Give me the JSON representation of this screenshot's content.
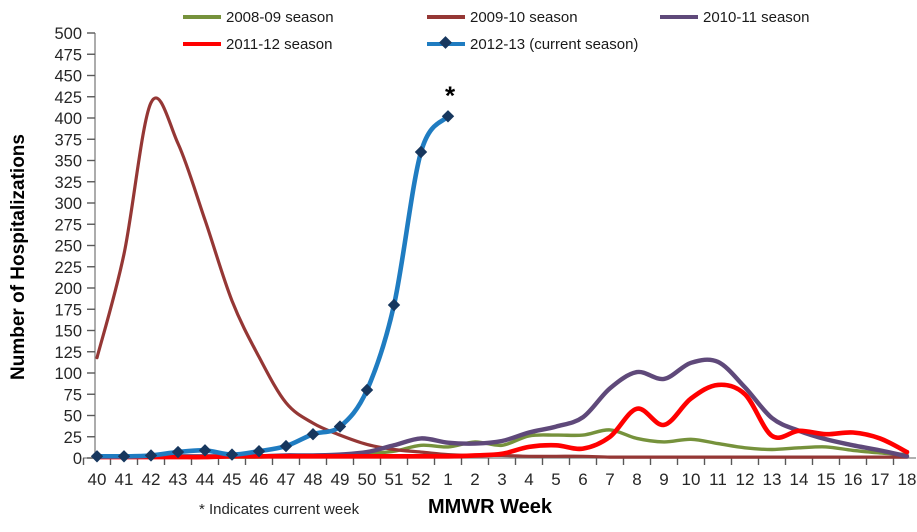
{
  "chart_data": {
    "type": "line",
    "title": "",
    "xlabel": "MMWR Week",
    "ylabel": "Number of Hospitalizations",
    "footnote": "* Indicates current week",
    "x_categories": [
      "40",
      "41",
      "42",
      "43",
      "44",
      "45",
      "46",
      "47",
      "48",
      "49",
      "50",
      "51",
      "52",
      "1",
      "2",
      "3",
      "4",
      "5",
      "6",
      "7",
      "8",
      "9",
      "10",
      "11",
      "12",
      "13",
      "14",
      "15",
      "16",
      "17",
      "18"
    ],
    "ylim": [
      0,
      500
    ],
    "ytick_step": 25,
    "grid": false,
    "legend_position": "top",
    "annotation": {
      "text": "*",
      "series": "2012-13 (current season)",
      "at_category": "1",
      "meaning": "current week"
    },
    "series": [
      {
        "name": "2008-09 season",
        "color": "#76923C",
        "line_width": 3.4,
        "values": [
          1,
          1,
          1,
          1,
          1,
          1,
          1,
          2,
          2,
          3,
          5,
          8,
          15,
          13,
          19,
          15,
          26,
          27,
          27,
          33,
          23,
          19,
          22,
          17,
          12,
          10,
          12,
          13,
          9,
          6,
          4
        ]
      },
      {
        "name": "2009-10 season",
        "color": "#953735",
        "line_width": 3.2,
        "values": [
          118,
          240,
          418,
          370,
          280,
          185,
          119,
          65,
          41,
          27,
          16,
          10,
          7,
          4,
          3,
          3,
          2,
          2,
          2,
          1,
          1,
          1,
          1,
          1,
          1,
          1,
          1,
          1,
          1,
          1,
          1
        ]
      },
      {
        "name": "2010-11 season",
        "color": "#5F497A",
        "line_width": 4.4,
        "values": [
          2,
          2,
          2,
          2,
          2,
          2,
          2,
          3,
          3,
          4,
          7,
          15,
          23,
          18,
          17,
          20,
          30,
          37,
          48,
          82,
          101,
          93,
          112,
          113,
          83,
          47,
          32,
          22,
          15,
          9,
          2
        ]
      },
      {
        "name": "2011-12 season",
        "color": "#FF0000",
        "line_width": 4.6,
        "values": [
          1,
          1,
          1,
          1,
          1,
          2,
          2,
          2,
          2,
          2,
          2,
          2,
          2,
          2,
          3,
          5,
          13,
          15,
          11,
          25,
          58,
          39,
          70,
          86,
          75,
          26,
          32,
          28,
          30,
          23,
          7
        ]
      },
      {
        "name": "2012-13 (current season)",
        "color": "#1F7CC1",
        "line_width": 4.6,
        "marker": "diamond",
        "marker_color": "#17375E",
        "values": [
          2,
          2,
          3,
          7,
          9,
          4,
          8,
          14,
          28,
          37,
          80,
          180,
          360,
          402,
          null,
          null,
          null,
          null,
          null,
          null,
          null,
          null,
          null,
          null,
          null,
          null,
          null,
          null,
          null,
          null,
          null
        ]
      }
    ],
    "axis_color": "#808080",
    "tick_color": "#595959",
    "text_color": "#262626"
  }
}
